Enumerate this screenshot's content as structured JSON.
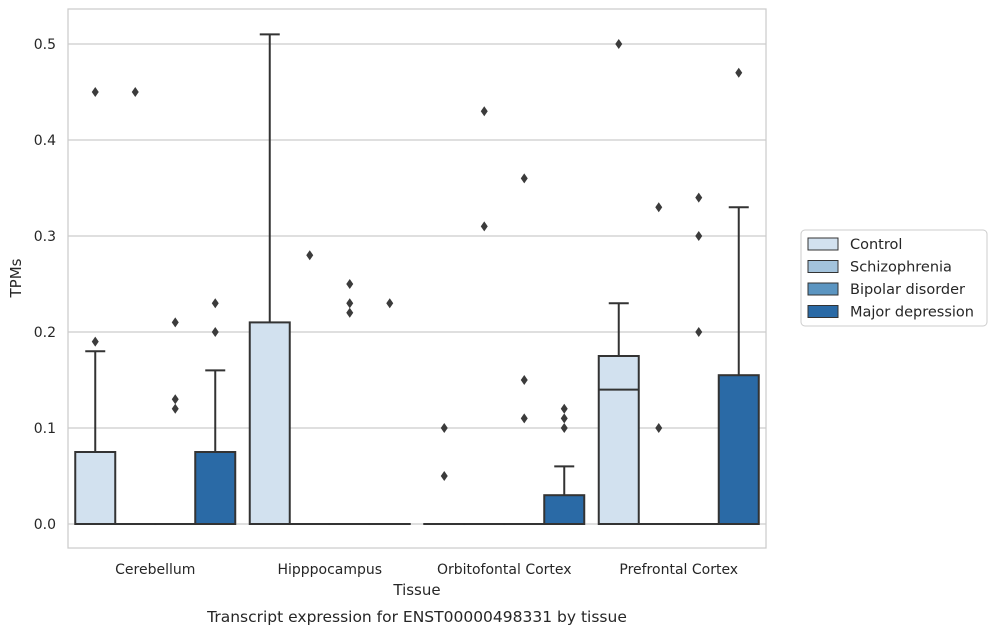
{
  "chart_data": {
    "type": "box",
    "caption": "Transcript expression for ENST00000498331 by tissue",
    "xlabel": "Tissue",
    "ylabel": "TPMs",
    "ylim": [
      -0.025,
      0.537
    ],
    "yticks": [
      0.0,
      0.1,
      0.2,
      0.3,
      0.4,
      0.5
    ],
    "ytick_labels": [
      "0.0",
      "0.1",
      "0.2",
      "0.3",
      "0.4",
      "0.5"
    ],
    "categories": [
      "Cerebellum",
      "Hipppocampus",
      "Orbitofontal Cortex",
      "Prefrontal Cortex"
    ],
    "grid": "horizontal",
    "legend_position": "right",
    "series": [
      {
        "name": "Control",
        "color": "#d2e1ef",
        "boxes": [
          {
            "q1": 0.0,
            "median": 0.0,
            "q3": 0.075,
            "whisker_low": 0.0,
            "whisker_high": 0.18,
            "outliers": [
              0.19,
              0.45
            ]
          },
          {
            "q1": 0.0,
            "median": 0.0,
            "q3": 0.21,
            "whisker_low": 0.0,
            "whisker_high": 0.51,
            "outliers": []
          },
          {
            "q1": 0.0,
            "median": 0.0,
            "q3": 0.0,
            "whisker_low": 0.0,
            "whisker_high": 0.0,
            "outliers": [
              0.05,
              0.1
            ]
          },
          {
            "q1": 0.0,
            "median": 0.14,
            "q3": 0.175,
            "whisker_low": 0.0,
            "whisker_high": 0.23,
            "outliers": [
              0.5
            ]
          }
        ]
      },
      {
        "name": "Schizophrenia",
        "color": "#a3c3dc",
        "boxes": [
          {
            "q1": 0.0,
            "median": 0.0,
            "q3": 0.0,
            "whisker_low": 0.0,
            "whisker_high": 0.0,
            "outliers": [
              0.45
            ]
          },
          {
            "q1": 0.0,
            "median": 0.0,
            "q3": 0.0,
            "whisker_low": 0.0,
            "whisker_high": 0.0,
            "outliers": [
              0.28
            ]
          },
          {
            "q1": 0.0,
            "median": 0.0,
            "q3": 0.0,
            "whisker_low": 0.0,
            "whisker_high": 0.0,
            "outliers": [
              0.31,
              0.43
            ]
          },
          {
            "q1": 0.0,
            "median": 0.0,
            "q3": 0.0,
            "whisker_low": 0.0,
            "whisker_high": 0.0,
            "outliers": [
              0.1,
              0.33
            ]
          }
        ]
      },
      {
        "name": "Bipolar disorder",
        "color": "#5b95c1",
        "boxes": [
          {
            "q1": 0.0,
            "median": 0.0,
            "q3": 0.0,
            "whisker_low": 0.0,
            "whisker_high": 0.0,
            "outliers": [
              0.12,
              0.13,
              0.21
            ]
          },
          {
            "q1": 0.0,
            "median": 0.0,
            "q3": 0.0,
            "whisker_low": 0.0,
            "whisker_high": 0.0,
            "outliers": [
              0.22,
              0.23,
              0.25
            ]
          },
          {
            "q1": 0.0,
            "median": 0.0,
            "q3": 0.0,
            "whisker_low": 0.0,
            "whisker_high": 0.0,
            "outliers": [
              0.11,
              0.15,
              0.36
            ]
          },
          {
            "q1": 0.0,
            "median": 0.0,
            "q3": 0.0,
            "whisker_low": 0.0,
            "whisker_high": 0.0,
            "outliers": [
              0.2,
              0.3,
              0.34
            ]
          }
        ]
      },
      {
        "name": "Major depression",
        "color": "#2a6aa6",
        "boxes": [
          {
            "q1": 0.0,
            "median": 0.0,
            "q3": 0.075,
            "whisker_low": 0.0,
            "whisker_high": 0.16,
            "outliers": [
              0.2,
              0.23
            ]
          },
          {
            "q1": 0.0,
            "median": 0.0,
            "q3": 0.0,
            "whisker_low": 0.0,
            "whisker_high": 0.0,
            "outliers": [
              0.23
            ]
          },
          {
            "q1": 0.0,
            "median": 0.0,
            "q3": 0.03,
            "whisker_low": 0.0,
            "whisker_high": 0.06,
            "outliers": [
              0.1,
              0.11,
              0.12
            ]
          },
          {
            "q1": 0.0,
            "median": 0.0,
            "q3": 0.155,
            "whisker_low": 0.0,
            "whisker_high": 0.33,
            "outliers": [
              0.47
            ]
          }
        ]
      }
    ]
  }
}
